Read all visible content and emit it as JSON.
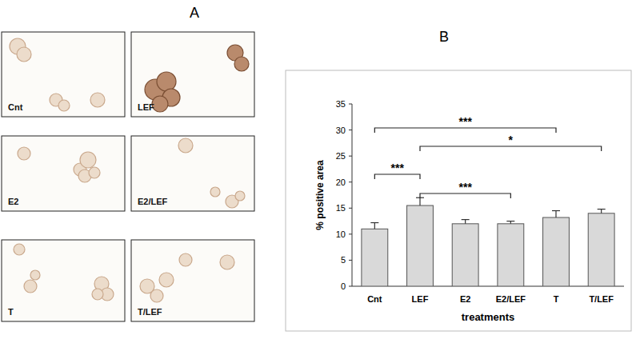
{
  "panel_a": {
    "label": "A",
    "images": [
      "Cnt",
      "LEF",
      "E2",
      "E2/LEF",
      "T",
      "T/LEF"
    ]
  },
  "chart_data": {
    "type": "bar",
    "panel_label": "B",
    "categories": [
      "Cnt",
      "LEF",
      "E2",
      "E2/LEF",
      "T",
      "T/LEF"
    ],
    "values": [
      11,
      15.5,
      12,
      12,
      13.2,
      14
    ],
    "errors": [
      1.2,
      1.5,
      0.8,
      0.5,
      1.3,
      0.8
    ],
    "color": "#d9d9d9",
    "x_label": "treatments",
    "y_label": "% positive area",
    "ylim": [
      0,
      35
    ],
    "yticks": [
      0,
      5,
      10,
      15,
      20,
      25,
      30,
      35
    ],
    "grid": false,
    "annotations": [
      {
        "from": "Cnt",
        "to": "T",
        "text": "***"
      },
      {
        "from": "LEF",
        "to": "T/LEF",
        "text": "*"
      },
      {
        "from": "Cnt",
        "to": "LEF",
        "text": "***"
      },
      {
        "from": "LEF",
        "to": "E2/LEF",
        "text": "***"
      }
    ]
  }
}
